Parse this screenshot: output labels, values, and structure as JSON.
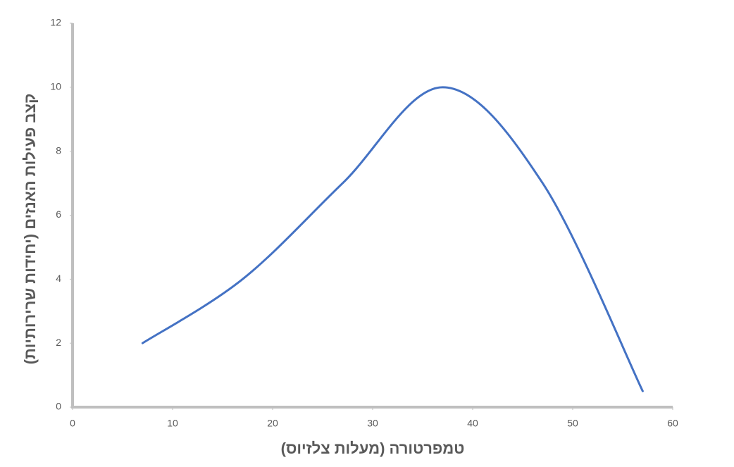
{
  "chart_data": {
    "type": "line",
    "x_label": "טמפרטורה (מעלות צלזיוס)",
    "y_label": "קצב פעילות האנזים (יחידות שרירותיות)",
    "x": [
      7,
      17,
      27,
      37,
      47,
      57
    ],
    "series": [
      {
        "name": "קצב פעילות",
        "color": "#4472c4",
        "values": [
          2,
          4,
          7,
          10,
          7,
          0.5
        ]
      }
    ],
    "xlim": [
      0,
      60
    ],
    "xticks": [
      0,
      10,
      20,
      30,
      40,
      50,
      60
    ],
    "ylim": [
      0,
      12
    ],
    "yticks": [
      0,
      2,
      4,
      6,
      8,
      10,
      12
    ],
    "smooth": true
  }
}
